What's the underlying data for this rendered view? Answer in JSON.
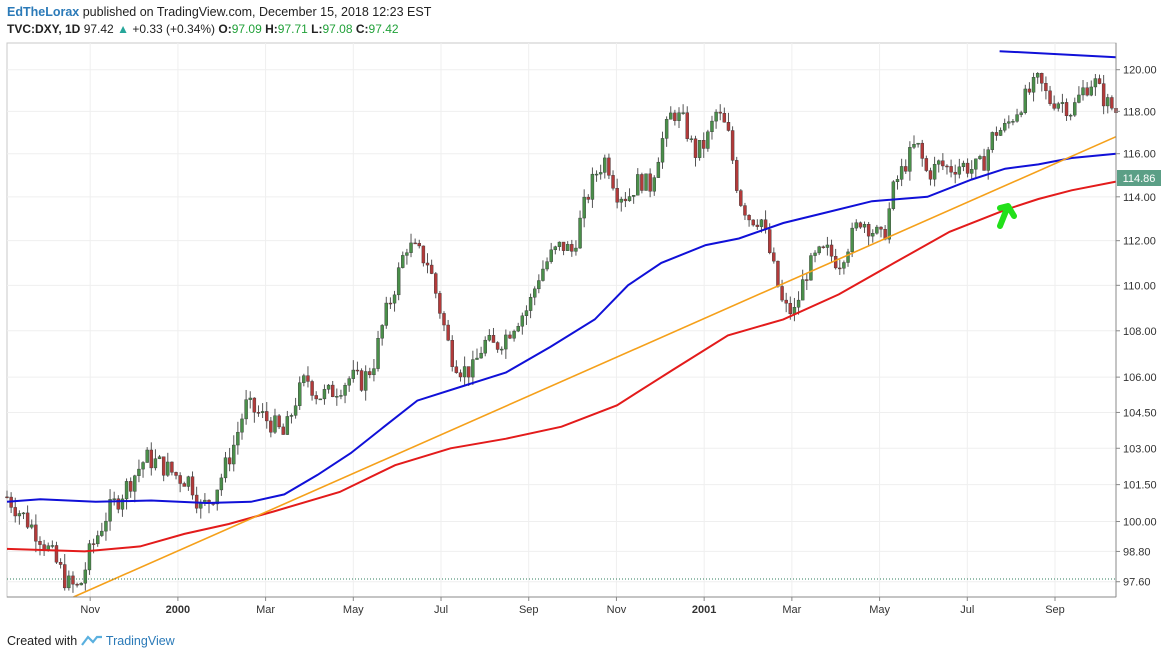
{
  "header": {
    "author": "EdTheLorax",
    "published_text": "published on TradingView.com, December 15, 2018 12:23 EST",
    "symbol": "TVC:DXY, 1D",
    "last": "97.42",
    "change_arrow": "▲",
    "change": "+0.33 (+0.34%)",
    "o_label": "O:",
    "o_value": "97.09",
    "h_label": "H:",
    "h_value": "97.71",
    "l_label": "L:",
    "l_value": "97.08",
    "c_label": "C:",
    "c_value": "97.42"
  },
  "footer": {
    "created_with": "Created with",
    "brand": "TradingView"
  },
  "colors": {
    "up_candle": "#4a8f4a",
    "down_candle": "#b23a3a",
    "ma_short": "#e31b1b",
    "ma_long": "#1010d8",
    "trendline": "#f5a01a",
    "arrow": "#22e01a",
    "price_badge": "#5b9f86"
  },
  "chart_data": {
    "type": "candlestick",
    "title": "",
    "xlabel": "",
    "ylabel": "",
    "ylim": [
      97.0,
      121.3
    ],
    "y_scale": "log",
    "grid": true,
    "y_ticks": [
      "120.00",
      "118.00",
      "116.00",
      "114.00",
      "112.00",
      "110.00",
      "108.00",
      "106.00",
      "104.50",
      "103.00",
      "101.50",
      "100.00",
      "98.80",
      "97.60"
    ],
    "x_ticks": [
      {
        "label": "Nov",
        "bold": false
      },
      {
        "label": "2000",
        "bold": true
      },
      {
        "label": "Mar",
        "bold": false
      },
      {
        "label": "May",
        "bold": false
      },
      {
        "label": "Jul",
        "bold": false
      },
      {
        "label": "Sep",
        "bold": false
      },
      {
        "label": "Nov",
        "bold": false
      },
      {
        "label": "2001",
        "bold": true
      },
      {
        "label": "Mar",
        "bold": false
      },
      {
        "label": "May",
        "bold": false
      },
      {
        "label": "Jul",
        "bold": false
      },
      {
        "label": "Sep",
        "bold": false
      }
    ],
    "last_price_label": "114.86",
    "price_path": [
      [
        0,
        101.0
      ],
      [
        0.015,
        100.2
      ],
      [
        0.03,
        99.4
      ],
      [
        0.045,
        98.3
      ],
      [
        0.055,
        97.5
      ],
      [
        0.065,
        97.3
      ],
      [
        0.075,
        98.8
      ],
      [
        0.09,
        100.3
      ],
      [
        0.1,
        100.9
      ],
      [
        0.115,
        101.9
      ],
      [
        0.125,
        102.6
      ],
      [
        0.14,
        102.3
      ],
      [
        0.155,
        101.8
      ],
      [
        0.165,
        101.7
      ],
      [
        0.175,
        100.5
      ],
      [
        0.185,
        101.0
      ],
      [
        0.195,
        102.0
      ],
      [
        0.205,
        103.2
      ],
      [
        0.215,
        104.8
      ],
      [
        0.225,
        104.5
      ],
      [
        0.24,
        104.0
      ],
      [
        0.25,
        103.5
      ],
      [
        0.26,
        105.0
      ],
      [
        0.27,
        106.0
      ],
      [
        0.28,
        105.2
      ],
      [
        0.29,
        105.3
      ],
      [
        0.3,
        105.6
      ],
      [
        0.31,
        106.0
      ],
      [
        0.32,
        105.8
      ],
      [
        0.33,
        106.5
      ],
      [
        0.34,
        108.5
      ],
      [
        0.35,
        110.0
      ],
      [
        0.36,
        111.8
      ],
      [
        0.37,
        111.5
      ],
      [
        0.38,
        111.0
      ],
      [
        0.39,
        109.0
      ],
      [
        0.4,
        107.0
      ],
      [
        0.41,
        106.3
      ],
      [
        0.42,
        106.3
      ],
      [
        0.43,
        107.5
      ],
      [
        0.44,
        107.3
      ],
      [
        0.45,
        107.8
      ],
      [
        0.46,
        108.5
      ],
      [
        0.47,
        109.0
      ],
      [
        0.48,
        110.5
      ],
      [
        0.49,
        111.3
      ],
      [
        0.5,
        111.8
      ],
      [
        0.51,
        111.5
      ],
      [
        0.52,
        113.5
      ],
      [
        0.53,
        115.0
      ],
      [
        0.54,
        115.8
      ],
      [
        0.55,
        114.2
      ],
      [
        0.56,
        114.0
      ],
      [
        0.57,
        114.8
      ],
      [
        0.58,
        114.5
      ],
      [
        0.59,
        116.5
      ],
      [
        0.6,
        118.0
      ],
      [
        0.61,
        117.5
      ],
      [
        0.62,
        116.0
      ],
      [
        0.63,
        116.5
      ],
      [
        0.64,
        118.0
      ],
      [
        0.65,
        117.0
      ],
      [
        0.66,
        114.0
      ],
      [
        0.67,
        113.0
      ],
      [
        0.68,
        113.0
      ],
      [
        0.69,
        111.0
      ],
      [
        0.7,
        109.0
      ],
      [
        0.71,
        108.8
      ],
      [
        0.72,
        110.5
      ],
      [
        0.73,
        111.3
      ],
      [
        0.74,
        111.5
      ],
      [
        0.75,
        111.0
      ],
      [
        0.76,
        112.0
      ],
      [
        0.77,
        113.0
      ],
      [
        0.78,
        112.5
      ],
      [
        0.79,
        112.0
      ],
      [
        0.8,
        114.5
      ],
      [
        0.81,
        115.5
      ],
      [
        0.82,
        116.5
      ],
      [
        0.83,
        115.0
      ],
      [
        0.84,
        115.5
      ],
      [
        0.85,
        115.3
      ],
      [
        0.86,
        115.5
      ],
      [
        0.87,
        115.3
      ],
      [
        0.88,
        115.5
      ],
      [
        0.89,
        117.0
      ],
      [
        0.9,
        117.2
      ],
      [
        0.91,
        118.0
      ],
      [
        0.92,
        118.8
      ],
      [
        0.93,
        119.5
      ],
      [
        0.94,
        118.5
      ],
      [
        0.95,
        118.5
      ],
      [
        0.96,
        118.0
      ],
      [
        0.97,
        119.0
      ],
      [
        0.98,
        119.5
      ],
      [
        0.99,
        118.5
      ],
      [
        1.0,
        118.0
      ]
    ],
    "ma_short": [
      [
        0,
        98.9
      ],
      [
        0.07,
        98.8
      ],
      [
        0.12,
        99.0
      ],
      [
        0.16,
        99.5
      ],
      [
        0.2,
        99.9
      ],
      [
        0.24,
        100.4
      ],
      [
        0.3,
        101.2
      ],
      [
        0.35,
        102.3
      ],
      [
        0.4,
        103.0
      ],
      [
        0.45,
        103.4
      ],
      [
        0.5,
        103.9
      ],
      [
        0.55,
        104.8
      ],
      [
        0.6,
        106.3
      ],
      [
        0.65,
        107.8
      ],
      [
        0.7,
        108.5
      ],
      [
        0.75,
        109.6
      ],
      [
        0.8,
        111.0
      ],
      [
        0.85,
        112.4
      ],
      [
        0.9,
        113.4
      ],
      [
        0.93,
        113.9
      ],
      [
        0.96,
        114.3
      ],
      [
        1.0,
        114.7
      ]
    ],
    "ma_long": [
      [
        0,
        100.8
      ],
      [
        0.03,
        100.9
      ],
      [
        0.08,
        100.8
      ],
      [
        0.13,
        100.85
      ],
      [
        0.18,
        100.75
      ],
      [
        0.22,
        100.8
      ],
      [
        0.25,
        101.1
      ],
      [
        0.28,
        101.9
      ],
      [
        0.31,
        102.8
      ],
      [
        0.34,
        103.9
      ],
      [
        0.37,
        105.0
      ],
      [
        0.41,
        105.6
      ],
      [
        0.45,
        106.2
      ],
      [
        0.49,
        107.3
      ],
      [
        0.53,
        108.5
      ],
      [
        0.56,
        110.0
      ],
      [
        0.59,
        111.0
      ],
      [
        0.63,
        111.8
      ],
      [
        0.66,
        112.1
      ],
      [
        0.7,
        112.8
      ],
      [
        0.74,
        113.3
      ],
      [
        0.78,
        113.8
      ],
      [
        0.83,
        114.0
      ],
      [
        0.87,
        114.8
      ],
      [
        0.9,
        115.3
      ],
      [
        0.93,
        115.5
      ],
      [
        0.96,
        115.8
      ],
      [
        1.0,
        116.0
      ]
    ],
    "series": [
      {
        "name": "",
        "kind": "trendline",
        "color": "orange",
        "points": [
          [
            0.06,
            97.0
          ],
          [
            1.0,
            116.8
          ]
        ]
      },
      {
        "name": "",
        "kind": "trendline",
        "color": "blue",
        "points": [
          [
            0.895,
            120.9
          ],
          [
            1.0,
            120.6
          ]
        ]
      }
    ]
  }
}
